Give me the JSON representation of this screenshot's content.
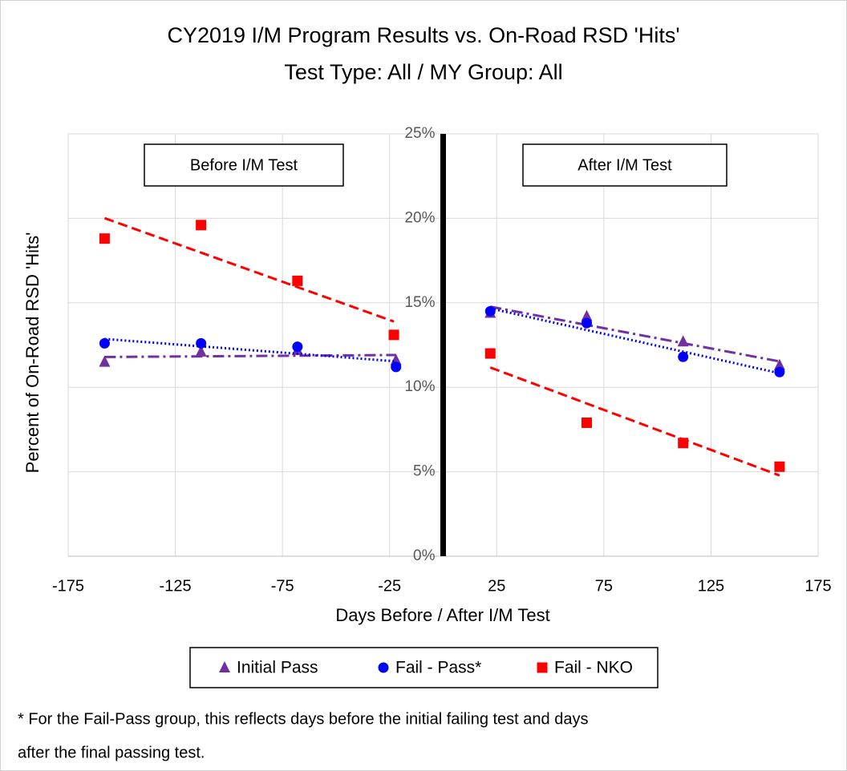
{
  "chart_data": {
    "type": "scatter",
    "title": "CY2019 I/M Program Results vs. On-Road RSD 'Hits'",
    "subtitle": "Test Type: All / MY Group: All",
    "x_label": "Days Before / After I/M Test",
    "y_label": "Percent of On-Road RSD 'Hits'",
    "annotations": [
      "Before I/M Test",
      "After I/M Test"
    ],
    "footnote": [
      "* For the Fail-Pass group, this reflects days before the initial failing test and days",
      "after the final passing test."
    ],
    "xlim": [
      -175,
      175
    ],
    "xticks": [
      -175,
      -125,
      -75,
      -25,
      25,
      75,
      125,
      175
    ],
    "ylim": [
      0,
      25
    ],
    "yticks": [
      {
        "value": 0,
        "label": "0%"
      },
      {
        "value": 5,
        "label": "5%"
      },
      {
        "value": 10,
        "label": "10%"
      },
      {
        "value": 15,
        "label": "15%"
      },
      {
        "value": 20,
        "label": "20%"
      },
      {
        "value": 25,
        "label": "25%"
      }
    ],
    "grid": true,
    "legend": "bottom",
    "series": [
      {
        "name": "Initial Pass",
        "color": "#7030a0",
        "marker": "triangle",
        "trendline": "dashdot",
        "x": [
          -158,
          -113,
          -68,
          -22,
          22,
          67,
          112,
          157
        ],
        "values": [
          11.5,
          12.1,
          12.2,
          11.6,
          14.4,
          14.2,
          12.7,
          11.3
        ]
      },
      {
        "name": "Fail - Pass*",
        "color": "#0000ff",
        "marker": "circle",
        "trendline": "dotted",
        "x": [
          -158,
          -113,
          -68,
          -22,
          22,
          67,
          112,
          157
        ],
        "values": [
          12.6,
          12.6,
          12.4,
          11.2,
          14.5,
          13.8,
          11.8,
          10.9
        ]
      },
      {
        "name": "Fail - NKO",
        "color": "#ff0000",
        "marker": "square",
        "trendline": "dashed",
        "x": [
          -158,
          -113,
          -68,
          -23,
          22,
          67,
          112,
          157
        ],
        "values": [
          18.8,
          19.6,
          16.3,
          13.1,
          12.0,
          7.9,
          6.7,
          5.3
        ]
      }
    ]
  }
}
